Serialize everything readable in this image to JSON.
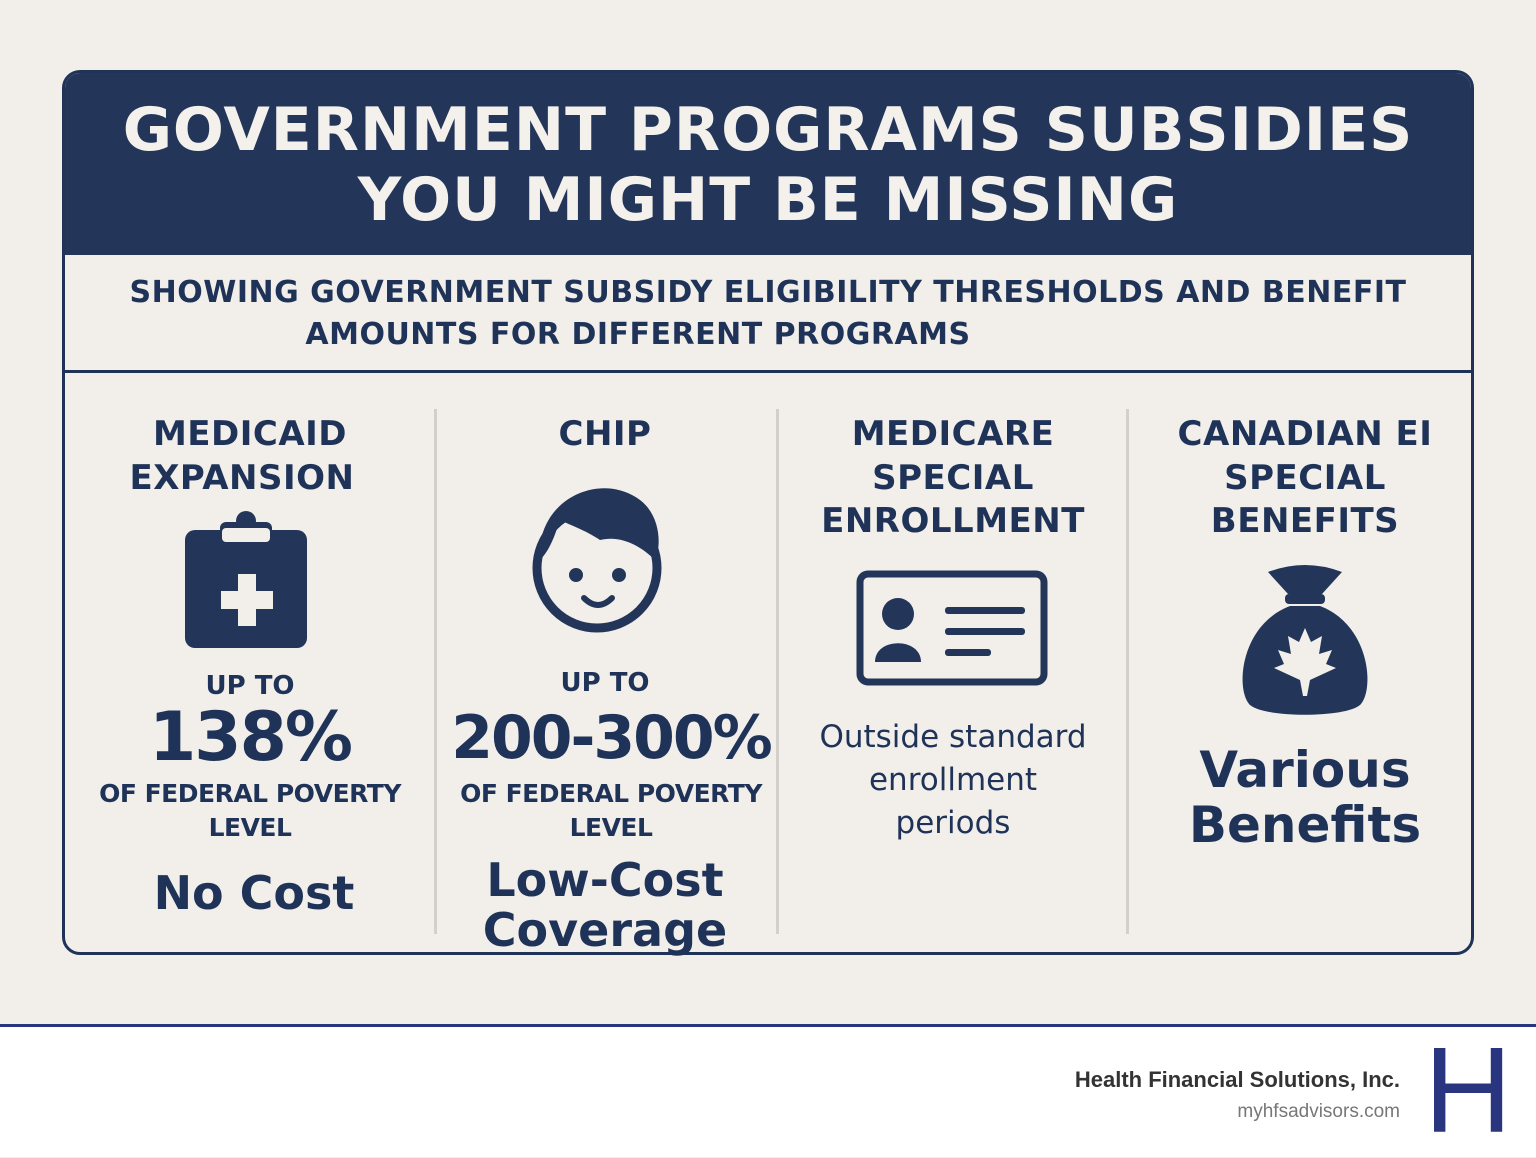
{
  "header": {
    "title_lines": [
      "GOVERNMENT PROGRAMS SUBSIDIES",
      "YOU MIGHT BE MISSING"
    ],
    "subtitle_lines": [
      "SHOWING GOVERNMENT SUBSIDY ELIGIBILITY THRESHOLDS AND BENEFIT",
      "AMOUNTS FOR DIFFERENT PROGRAMS"
    ]
  },
  "programs": [
    {
      "title_lines": [
        "MEDICAID",
        "EXPANSION"
      ],
      "lead": "UP TO",
      "figure": "138%",
      "note_lines": [
        "OF FEDERAL POVERTY",
        "LEVEL"
      ],
      "benefit_lines": [
        "No Cost"
      ]
    },
    {
      "title_lines": [
        "CHIP"
      ],
      "lead": "UP TO",
      "figure": "200-300%",
      "note_lines": [
        "OF FEDERAL POVERTY",
        "LEVEL"
      ],
      "benefit_lines": [
        "Low-Cost",
        "Coverage"
      ]
    },
    {
      "title_lines": [
        "MEDICARE",
        "SPECIAL",
        "ENROLLMENT"
      ],
      "description_lines": [
        "Outside standard",
        "enrollment",
        "periods"
      ]
    },
    {
      "title_lines": [
        "CANADIAN EI",
        "SPECIAL",
        "BENEFITS"
      ],
      "benefit_lines": [
        "Various",
        "Benefits"
      ]
    }
  ],
  "footer": {
    "company": "Health Financial Solutions, Inc.",
    "url": "myhfsadvisors.com",
    "logo": "H"
  }
}
